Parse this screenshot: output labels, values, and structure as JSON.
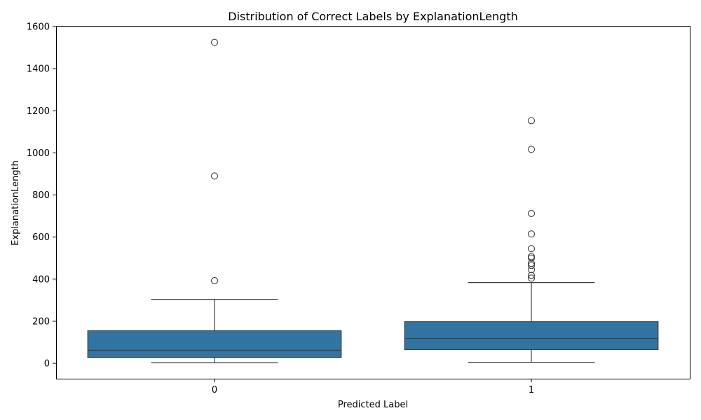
{
  "chart_data": {
    "type": "box",
    "title": "Distribution of Correct Labels by ExplanationLength",
    "xlabel": "Predicted Label",
    "ylabel": "ExplanationLength",
    "categories": [
      "0",
      "1"
    ],
    "ylim": [
      -73,
      1600
    ],
    "yticks": [
      0,
      200,
      400,
      600,
      800,
      1000,
      1200,
      1400,
      1600
    ],
    "grid": false,
    "box_color": "#3274a1",
    "line_color": "#3f3f3f",
    "boxes": [
      {
        "category": "0",
        "whisker_low": 3,
        "q1": 28,
        "median": 62,
        "q3": 155,
        "whisker_high": 304,
        "outliers": [
          393,
          890,
          1525
        ]
      },
      {
        "category": "1",
        "whisker_low": 5,
        "q1": 65,
        "median": 118,
        "q3": 198,
        "whisker_high": 384,
        "outliers": [
          405,
          418,
          445,
          465,
          475,
          500,
          507,
          545,
          615,
          712,
          1017,
          1153
        ]
      }
    ]
  }
}
